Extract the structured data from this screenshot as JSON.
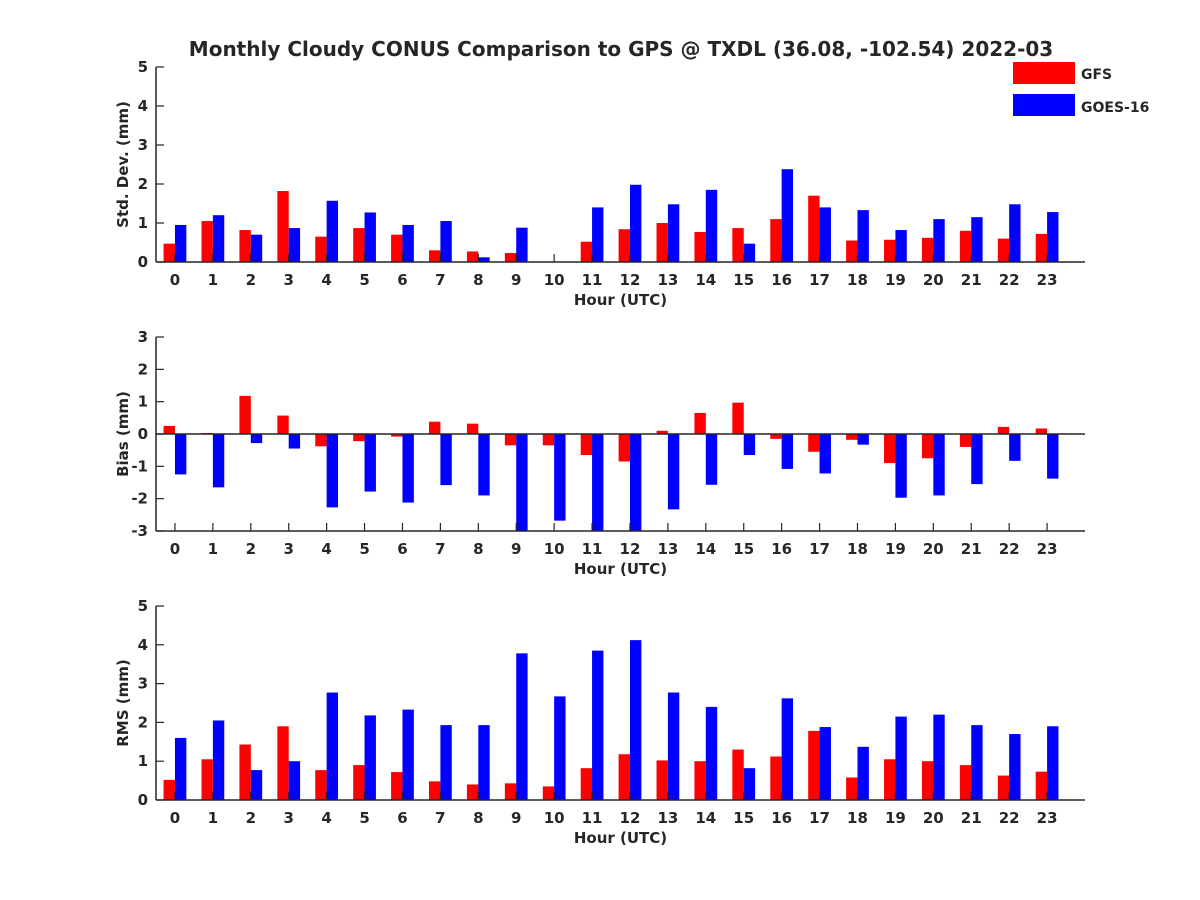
{
  "figure_title": "Monthly Cloudy CONUS Comparison to GPS @ TXDL (36.08, -102.54) 2022-03",
  "legend": [
    {
      "name": "GFS",
      "color": "#ff0000"
    },
    {
      "name": "GOES-16",
      "color": "#0000ff"
    }
  ],
  "chart_data": [
    {
      "type": "bar",
      "title": "Monthly Cloudy CONUS Comparison to GPS @ TXDL (36.08, -102.54) 2022-03",
      "xlabel": "Hour (UTC)",
      "ylabel": "Std. Dev. (mm)",
      "ylim": [
        0,
        5
      ],
      "yticks": [
        0,
        1,
        2,
        3,
        4,
        5
      ],
      "categories": [
        "0",
        "1",
        "2",
        "3",
        "4",
        "5",
        "6",
        "7",
        "8",
        "9",
        "10",
        "11",
        "12",
        "13",
        "14",
        "15",
        "16",
        "17",
        "18",
        "19",
        "20",
        "21",
        "22",
        "23"
      ],
      "series": [
        {
          "name": "GFS",
          "color": "#ff0000",
          "values": [
            0.47,
            1.05,
            0.82,
            1.82,
            0.65,
            0.87,
            0.7,
            0.3,
            0.27,
            0.23,
            0,
            0.52,
            0.84,
            1.0,
            0.77,
            0.87,
            1.1,
            1.7,
            0.55,
            0.57,
            0.62,
            0.8,
            0.6,
            0.72
          ]
        },
        {
          "name": "GOES-16",
          "color": "#0000ff",
          "values": [
            0.95,
            1.2,
            0.7,
            0.87,
            1.57,
            1.27,
            0.95,
            1.05,
            0.12,
            0.88,
            0,
            1.4,
            1.98,
            1.48,
            1.85,
            0.47,
            2.38,
            1.4,
            1.33,
            0.82,
            1.1,
            1.15,
            1.48,
            1.28
          ]
        }
      ],
      "legend_position": "top-right",
      "grid": false
    },
    {
      "type": "bar",
      "title": "",
      "xlabel": "Hour (UTC)",
      "ylabel": "Bias (mm)",
      "ylim": [
        -3,
        3
      ],
      "yticks": [
        -3,
        -2,
        -1,
        0,
        1,
        2,
        3
      ],
      "categories": [
        "0",
        "1",
        "2",
        "3",
        "4",
        "5",
        "6",
        "7",
        "8",
        "9",
        "10",
        "11",
        "12",
        "13",
        "14",
        "15",
        "16",
        "17",
        "18",
        "19",
        "20",
        "21",
        "22",
        "23"
      ],
      "series": [
        {
          "name": "GFS",
          "color": "#ff0000",
          "values": [
            0.25,
            0.03,
            1.18,
            0.57,
            -0.38,
            -0.22,
            -0.08,
            0.38,
            0.32,
            -0.35,
            -0.35,
            -0.65,
            -0.85,
            0.1,
            0.65,
            0.97,
            -0.15,
            -0.55,
            -0.18,
            -0.9,
            -0.75,
            -0.4,
            0.22,
            0.17
          ]
        },
        {
          "name": "GOES-16",
          "color": "#0000ff",
          "values": [
            -1.25,
            -1.65,
            -0.28,
            -0.45,
            -2.27,
            -1.78,
            -2.12,
            -1.58,
            -1.9,
            -3.0,
            -2.68,
            -3.0,
            -3.0,
            -2.33,
            -1.57,
            -0.65,
            -1.08,
            -1.22,
            -0.33,
            -1.97,
            -1.9,
            -1.55,
            -0.83,
            -1.38
          ]
        }
      ],
      "grid": false
    },
    {
      "type": "bar",
      "title": "",
      "xlabel": "Hour (UTC)",
      "ylabel": "RMS (mm)",
      "ylim": [
        0,
        5
      ],
      "yticks": [
        0,
        1,
        2,
        3,
        4,
        5
      ],
      "categories": [
        "0",
        "1",
        "2",
        "3",
        "4",
        "5",
        "6",
        "7",
        "8",
        "9",
        "10",
        "11",
        "12",
        "13",
        "14",
        "15",
        "16",
        "17",
        "18",
        "19",
        "20",
        "21",
        "22",
        "23"
      ],
      "series": [
        {
          "name": "GFS",
          "color": "#ff0000",
          "values": [
            0.52,
            1.05,
            1.43,
            1.9,
            0.77,
            0.9,
            0.72,
            0.48,
            0.4,
            0.43,
            0.35,
            0.82,
            1.18,
            1.02,
            1.0,
            1.3,
            1.12,
            1.78,
            0.58,
            1.05,
            1.0,
            0.9,
            0.63,
            0.73
          ]
        },
        {
          "name": "GOES-16",
          "color": "#0000ff",
          "values": [
            1.6,
            2.05,
            0.77,
            1.0,
            2.77,
            2.18,
            2.33,
            1.93,
            1.93,
            3.78,
            2.67,
            3.85,
            4.12,
            2.77,
            2.4,
            0.82,
            2.62,
            1.88,
            1.37,
            2.15,
            2.2,
            1.93,
            1.7,
            1.9
          ]
        }
      ],
      "grid": false
    }
  ]
}
